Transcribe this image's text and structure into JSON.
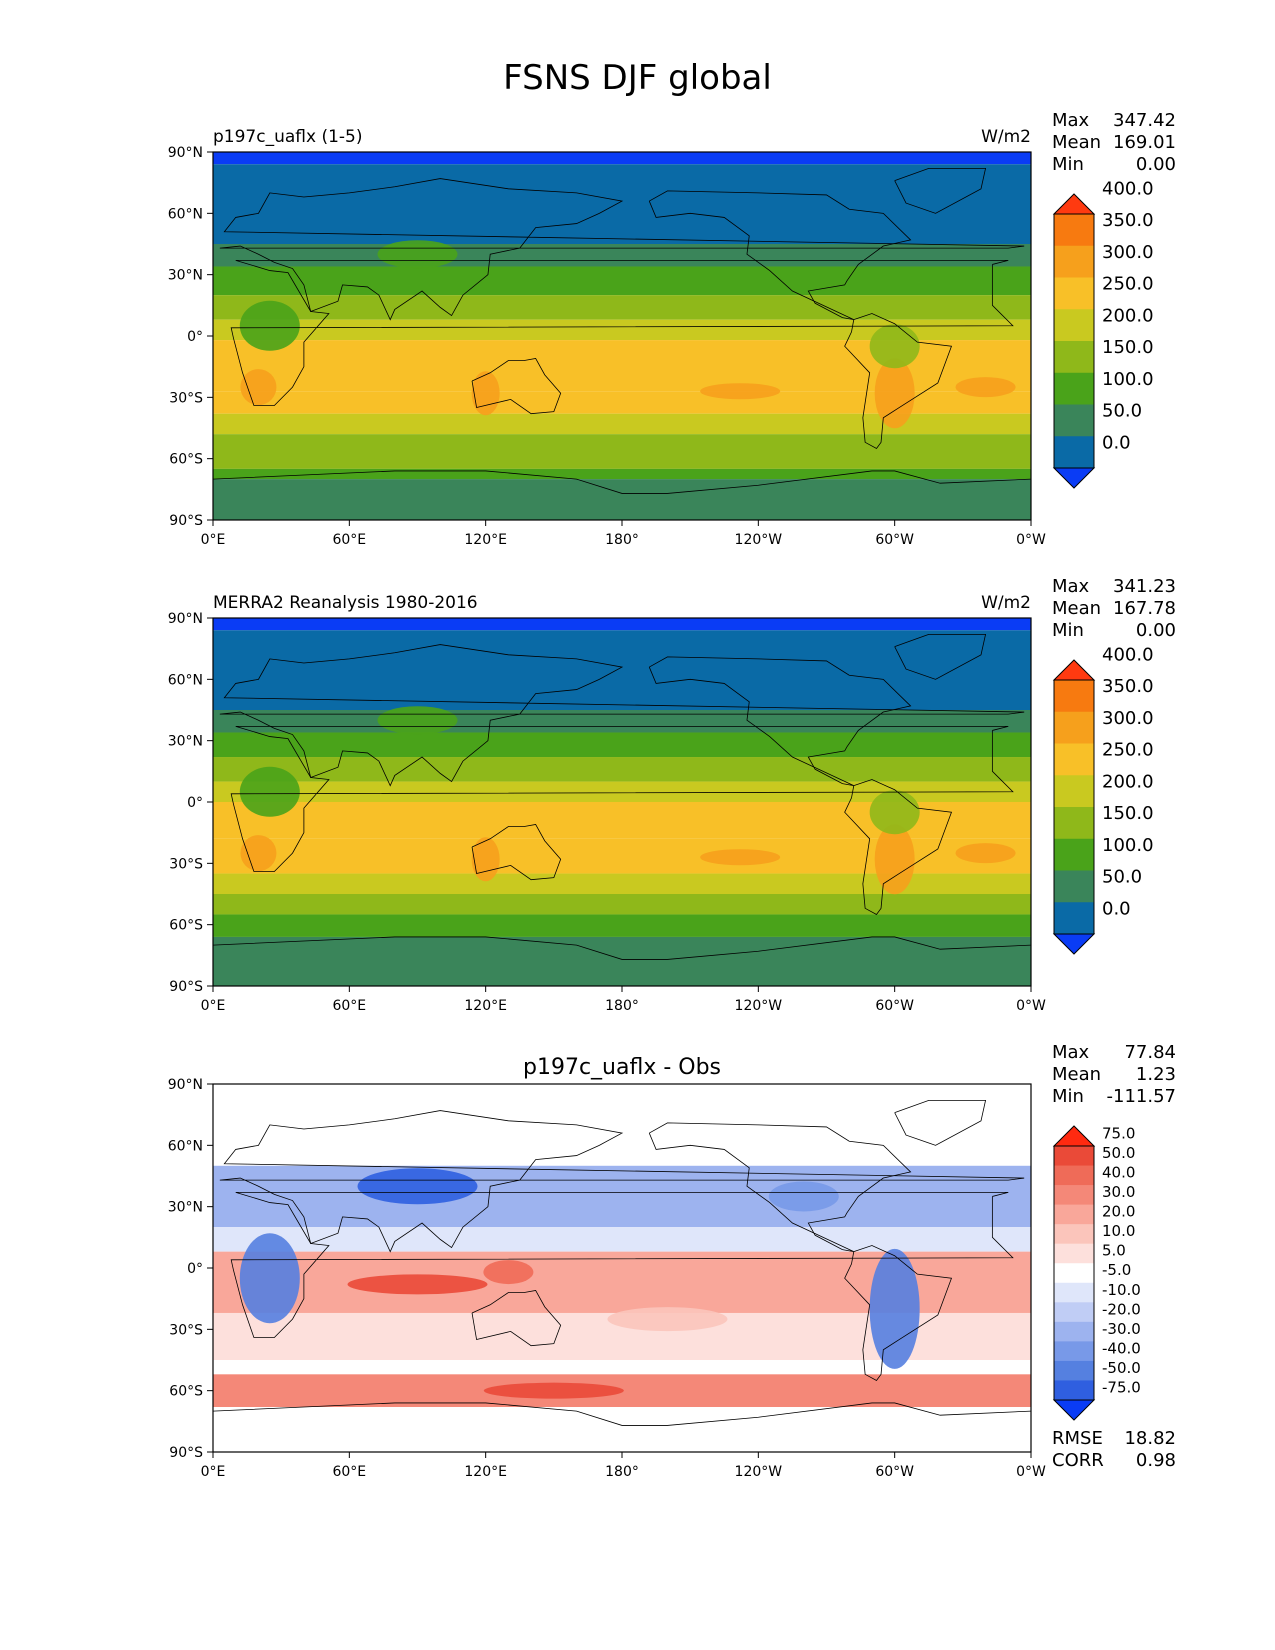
{
  "title": "FSNS DJF global",
  "lat_ticks": [
    "90°N",
    "60°N",
    "30°N",
    "0°",
    "30°S",
    "60°S",
    "90°S"
  ],
  "lon_ticks": [
    "0°E",
    "60°E",
    "120°E",
    "180°",
    "120°W",
    "60°W",
    "0°W"
  ],
  "colors": {
    "abs_levels": [
      "#0a3cf5",
      "#0a6aa6",
      "#3a855a",
      "#4aa31a",
      "#8fb81a",
      "#c9c920",
      "#f8c028",
      "#f6a01c",
      "#f77a10",
      "#ff3a10"
    ],
    "diff_levels": [
      "#0a3cf5",
      "#2f5fe0",
      "#5580e0",
      "#7899e8",
      "#9db3ef",
      "#c0cdf5",
      "#dfe6fa",
      "#ffffff",
      "#fde0dc",
      "#fbc5bb",
      "#f9a79a",
      "#f48878",
      "#ef6b58",
      "#ea4a38",
      "#ff2a10"
    ]
  },
  "chart_data": [
    {
      "type": "heatmap",
      "panel": "test",
      "title_left": "p197c_uaflx (1-5)",
      "title_right": "W/m2",
      "stats": [
        {
          "label": "Max",
          "value": "347.42"
        },
        {
          "label": "Mean",
          "value": "169.01"
        },
        {
          "label": "Min",
          "value": "0.00"
        }
      ],
      "colorbar_levels": [
        "0.0",
        "50.0",
        "100.0",
        "150.0",
        "200.0",
        "250.0",
        "300.0",
        "350.0",
        "400.0"
      ],
      "xlim": [
        0,
        360
      ],
      "ylim": [
        -90,
        90
      ],
      "zonal_bands": [
        {
          "lat": [
            84,
            90
          ],
          "level": 0
        },
        {
          "lat": [
            45,
            84
          ],
          "level": 1
        },
        {
          "lat": [
            34,
            45
          ],
          "level": 2
        },
        {
          "lat": [
            20,
            34
          ],
          "level": 3
        },
        {
          "lat": [
            8,
            20
          ],
          "level": 4
        },
        {
          "lat": [
            -2,
            8
          ],
          "level": 5
        },
        {
          "lat": [
            -27,
            -2
          ],
          "level": 6
        },
        {
          "lat": [
            -38,
            -27
          ],
          "level": 6
        },
        {
          "lat": [
            -48,
            -38
          ],
          "level": 5
        },
        {
          "lat": [
            -65,
            -48
          ],
          "level": 4
        },
        {
          "lat": [
            -70,
            -65
          ],
          "level": 3
        },
        {
          "lat": [
            -90,
            -70
          ],
          "level": 2
        }
      ]
    },
    {
      "type": "heatmap",
      "panel": "reference",
      "title_left": "MERRA2 Reanalysis 1980-2016",
      "title_right": "W/m2",
      "stats": [
        {
          "label": "Max",
          "value": "341.23"
        },
        {
          "label": "Mean",
          "value": "167.78"
        },
        {
          "label": "Min",
          "value": "0.00"
        }
      ],
      "colorbar_levels": [
        "0.0",
        "50.0",
        "100.0",
        "150.0",
        "200.0",
        "250.0",
        "300.0",
        "350.0",
        "400.0"
      ],
      "xlim": [
        0,
        360
      ],
      "ylim": [
        -90,
        90
      ],
      "zonal_bands": [
        {
          "lat": [
            84,
            90
          ],
          "level": 0
        },
        {
          "lat": [
            45,
            84
          ],
          "level": 1
        },
        {
          "lat": [
            34,
            45
          ],
          "level": 2
        },
        {
          "lat": [
            22,
            34
          ],
          "level": 3
        },
        {
          "lat": [
            10,
            22
          ],
          "level": 4
        },
        {
          "lat": [
            0,
            10
          ],
          "level": 5
        },
        {
          "lat": [
            -18,
            0
          ],
          "level": 6
        },
        {
          "lat": [
            -35,
            -18
          ],
          "level": 6
        },
        {
          "lat": [
            -45,
            -35
          ],
          "level": 5
        },
        {
          "lat": [
            -55,
            -45
          ],
          "level": 4
        },
        {
          "lat": [
            -66,
            -55
          ],
          "level": 3
        },
        {
          "lat": [
            -90,
            -66
          ],
          "level": 2
        }
      ]
    },
    {
      "type": "heatmap",
      "panel": "difference",
      "title_center": "p197c_uaflx - Obs",
      "stats": [
        {
          "label": "Max",
          "value": "77.84"
        },
        {
          "label": "Mean",
          "value": "1.23"
        },
        {
          "label": "Min",
          "value": "-111.57"
        }
      ],
      "colorbar_levels": [
        "-75.0",
        "-50.0",
        "-40.0",
        "-30.0",
        "-20.0",
        "-10.0",
        "-5.0",
        "5.0",
        "10.0",
        "20.0",
        "30.0",
        "40.0",
        "50.0",
        "75.0"
      ],
      "metrics": [
        {
          "label": "RMSE",
          "value": "18.82"
        },
        {
          "label": "CORR",
          "value": "0.98"
        }
      ],
      "xlim": [
        0,
        360
      ],
      "ylim": [
        -90,
        90
      ],
      "zonal_bands": [
        {
          "lat": [
            50,
            90
          ],
          "level": 7
        },
        {
          "lat": [
            20,
            50
          ],
          "level": 4
        },
        {
          "lat": [
            8,
            20
          ],
          "level": 6
        },
        {
          "lat": [
            -22,
            8
          ],
          "level": 10
        },
        {
          "lat": [
            -45,
            -22
          ],
          "level": 8
        },
        {
          "lat": [
            -52,
            -45
          ],
          "level": 7
        },
        {
          "lat": [
            -68,
            -52
          ],
          "level": 11
        },
        {
          "lat": [
            -90,
            -68
          ],
          "level": 7
        }
      ]
    }
  ]
}
